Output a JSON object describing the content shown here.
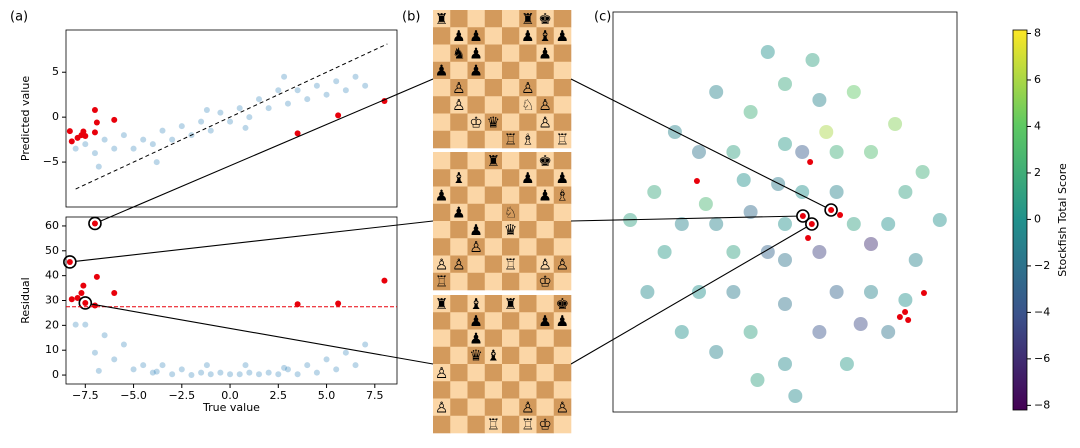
{
  "panel_labels": [
    "(a)",
    "(b)",
    "(c)"
  ],
  "chart_data": [
    {
      "type": "scatter",
      "ylabel": "Predicted value",
      "diagonal": true,
      "xlim": [
        -8.5,
        8.65
      ],
      "ylim": [
        -10,
        9.7
      ],
      "yticks": [
        {
          "value": -5,
          "label": "−5"
        },
        0,
        5
      ],
      "series": [
        {
          "color": "#1f77b4",
          "alpha": 0.3,
          "x": [
            -8,
            -7.5,
            -7,
            -6.5,
            -6,
            -5.5,
            -5,
            -4.5,
            -4,
            -3.5,
            -3,
            -2.5,
            -2,
            -1.5,
            -1,
            -0.5,
            0,
            0.5,
            1,
            1.5,
            2,
            2.5,
            3,
            3.5,
            4,
            4.5,
            5,
            5.5,
            6,
            6.5,
            7,
            -1.2,
            0.8,
            -3.8,
            2.8,
            -6.8
          ],
          "values": [
            -3.5,
            -3,
            -4,
            -2.5,
            -3.5,
            -2,
            -3.5,
            -2.5,
            -3,
            -1.5,
            -2.5,
            -1,
            -2,
            -0.5,
            -1.5,
            0.5,
            -0.5,
            1,
            0,
            2,
            1,
            3,
            1.5,
            3,
            2,
            3.5,
            2.5,
            4,
            3,
            4.5,
            3.5,
            0.8,
            -1.2,
            -5,
            4.5,
            -5.5
          ]
        },
        {
          "color": "#e8000b",
          "alpha": 1,
          "x": [
            -7,
            -8.3,
            -7.5,
            -8.2,
            -7.9,
            -7.6,
            -7.7,
            -6.9,
            -6,
            -7,
            3.5,
            5.6,
            8
          ],
          "values": [
            0.8,
            -1.55,
            -2.1,
            -2.7,
            -2.3,
            -1.6,
            -2,
            -0.6,
            -0.3,
            -1.7,
            -1.8,
            0.2,
            1.8
          ]
        }
      ]
    },
    {
      "type": "scatter",
      "xlabel": "True value",
      "ylabel": "Residual",
      "xlim": [
        -8.5,
        8.65
      ],
      "ylim": [
        -3.6,
        63.6
      ],
      "xticks": [
        {
          "value": -7.5,
          "label": "−7.5"
        },
        {
          "value": -5,
          "label": "−5.0"
        },
        {
          "value": -2.5,
          "label": "−2.5"
        },
        {
          "value": 0,
          "label": "0.0"
        },
        {
          "value": 2.5,
          "label": "2.5"
        },
        {
          "value": 5,
          "label": "5.0"
        },
        {
          "value": 7.5,
          "label": "7.5"
        }
      ],
      "yticks": [
        0,
        10,
        20,
        30,
        40,
        50,
        60
      ],
      "threshold": 27.5,
      "threshold_color": "#e8000b",
      "series": [
        {
          "color": "#1f77b4",
          "alpha": 0.3,
          "x": [
            -8,
            -7.5,
            -7,
            -6.5,
            -6,
            -5.5,
            -5,
            -4.5,
            -4,
            -3.5,
            -3,
            -2.5,
            -2,
            -1.5,
            -1,
            -0.5,
            0,
            0.5,
            1,
            1.5,
            2,
            2.5,
            3,
            3.5,
            4,
            4.5,
            5,
            5.5,
            6,
            6.5,
            7,
            -1.2,
            0.8,
            -3.8,
            2.8,
            -6.8
          ],
          "values": [
            20.3,
            20.3,
            9,
            16,
            6.3,
            12.3,
            2.3,
            4,
            1,
            4,
            0.3,
            2.3,
            0,
            1,
            0.3,
            1,
            0.3,
            0.3,
            1,
            0.3,
            1,
            0.3,
            2.3,
            0.3,
            4,
            1,
            6.3,
            2.3,
            9,
            4,
            12.3,
            4,
            4,
            1.4,
            2.9,
            1.7
          ]
        },
        {
          "color": "#e8000b",
          "alpha": 1,
          "x": [
            -8.2,
            -7.9,
            -7.6,
            -7.7,
            -6.9,
            -6,
            -7,
            3.5,
            5.6,
            8
          ],
          "values": [
            30.5,
            31,
            36,
            33,
            39.5,
            33,
            28,
            28.5,
            28.8,
            38
          ]
        },
        {
          "color": "#e8000b",
          "alpha": 1,
          "marker": "circled",
          "x": [
            -7,
            -8.3,
            -7.5
          ],
          "values": [
            61,
            45.5,
            29
          ]
        }
      ]
    },
    {
      "type": "scatter",
      "xlim": [
        0,
        100
      ],
      "ylim": [
        0,
        100
      ],
      "colorbar": {
        "label": "Stockfish Total Score",
        "colormap": "viridis",
        "clim": [
          -8.2,
          8.15
        ],
        "ticks": [
          {
            "value": -8,
            "label": "−8"
          },
          {
            "value": -6,
            "label": "−6"
          },
          {
            "value": -4,
            "label": "−4"
          },
          {
            "value": -2,
            "label": "−2"
          },
          0,
          2,
          4,
          6,
          8
        ]
      },
      "series": [
        {
          "colormap": "viridis",
          "alpha": 0.45,
          "x": [
            50,
            30,
            70,
            50,
            50,
            35,
            65,
            35,
            65,
            20,
            80,
            50,
            50,
            25,
            75,
            25,
            75,
            40,
            60,
            40,
            60,
            15,
            85,
            45,
            55,
            40,
            60,
            30,
            70,
            20,
            80,
            12,
            88,
            45,
            58,
            30,
            68,
            90,
            10,
            50,
            35,
            65,
            82,
            75,
            55,
            27,
            48,
            62,
            38,
            72,
            18,
            85,
            42,
            53,
            95,
            5
          ],
          "values": [
            47,
            47,
            47,
            27,
            67,
            30,
            30,
            65,
            65,
            47,
            47,
            12,
            82,
            30,
            30,
            65,
            65,
            20,
            20,
            75,
            78,
            40,
            55,
            40,
            55,
            50,
            40,
            80,
            80,
            20,
            20,
            55,
            38,
            90,
            88,
            15,
            12,
            60,
            30,
            38,
            40,
            55,
            72,
            42,
            65,
            52,
            57,
            70,
            58,
            22,
            70,
            28,
            8,
            4,
            48,
            48
          ],
          "scores": [
            0,
            -1,
            1,
            -2,
            0.5,
            -1.5,
            -3,
            1,
            2,
            -1,
            0,
            -0.5,
            1.5,
            0,
            -1,
            -2,
            3,
            1,
            -4,
            2,
            -1,
            0.5,
            1,
            -3,
            0,
            -2.5,
            -5,
            -1,
            4,
            0,
            -2,
            1.5,
            -1,
            0,
            1,
            -1,
            0.5,
            2,
            -0.5,
            -2,
            1,
            -1,
            5,
            -6,
            -3.5,
            2.5,
            -1.5,
            6,
            0,
            -4.5,
            -1,
            0,
            1,
            -0.5,
            0,
            1
          ]
        },
        {
          "color": "#e8000b",
          "alpha": 1,
          "x": [
            57.3,
            24.4,
            66,
            56.7,
            90.4,
            84.9,
            83.4,
            85.8
          ],
          "values": [
            62.5,
            57.75,
            49.25,
            43.5,
            29.75,
            25,
            23.75,
            23
          ]
        },
        {
          "color": "#e8000b",
          "alpha": 1,
          "marker": "circled",
          "x": [
            63.4,
            55.2,
            57.8
          ],
          "values": [
            50.5,
            49,
            47
          ]
        }
      ]
    }
  ],
  "boards": [
    {
      "rows": [
        [
          "♜",
          null,
          null,
          null,
          null,
          "♜",
          "♚",
          null
        ],
        [
          null,
          "♟",
          "♟",
          null,
          null,
          "♟",
          "♝",
          "♟"
        ],
        [
          null,
          "♞",
          "♟",
          null,
          null,
          null,
          "♟",
          null
        ],
        [
          "♟",
          null,
          "♟",
          null,
          null,
          null,
          null,
          null
        ],
        [
          null,
          "♙",
          null,
          null,
          null,
          "♙",
          null,
          null
        ],
        [
          null,
          "♙",
          null,
          null,
          null,
          "♘",
          "♙",
          null
        ],
        [
          null,
          null,
          "♔",
          "♛",
          null,
          null,
          "♙",
          null
        ],
        [
          null,
          null,
          null,
          null,
          "♖",
          "♗",
          null,
          "♖"
        ]
      ]
    },
    {
      "rows": [
        [
          null,
          null,
          null,
          "♜",
          null,
          null,
          "♚",
          null
        ],
        [
          null,
          "♝",
          null,
          null,
          null,
          "♟",
          null,
          "♟"
        ],
        [
          "♟",
          null,
          null,
          null,
          null,
          null,
          "♟",
          "♗"
        ],
        [
          null,
          "♟",
          null,
          null,
          "♘",
          null,
          null,
          null
        ],
        [
          null,
          null,
          "♟",
          null,
          "♛",
          null,
          null,
          null
        ],
        [
          null,
          null,
          "♙",
          null,
          null,
          null,
          null,
          null
        ],
        [
          "♙",
          "♙",
          null,
          null,
          "♖",
          null,
          "♙",
          "♙"
        ],
        [
          "♖",
          null,
          null,
          null,
          null,
          null,
          "♔",
          null
        ]
      ]
    },
    {
      "rows": [
        [
          "♜",
          null,
          "♝",
          null,
          "♜",
          null,
          null,
          "♚"
        ],
        [
          null,
          null,
          "♟",
          null,
          null,
          null,
          "♟",
          "♟"
        ],
        [
          null,
          null,
          "♟",
          null,
          null,
          null,
          null,
          null
        ],
        [
          null,
          null,
          "♛",
          "♝",
          null,
          null,
          null,
          null
        ],
        [
          "♙",
          null,
          null,
          null,
          null,
          null,
          null,
          null
        ],
        [
          null,
          null,
          null,
          null,
          null,
          null,
          null,
          null
        ],
        [
          "♙",
          null,
          null,
          null,
          null,
          "♙",
          null,
          "♙"
        ],
        [
          null,
          null,
          null,
          "♖",
          null,
          "♖",
          "♔",
          null
        ]
      ]
    }
  ]
}
